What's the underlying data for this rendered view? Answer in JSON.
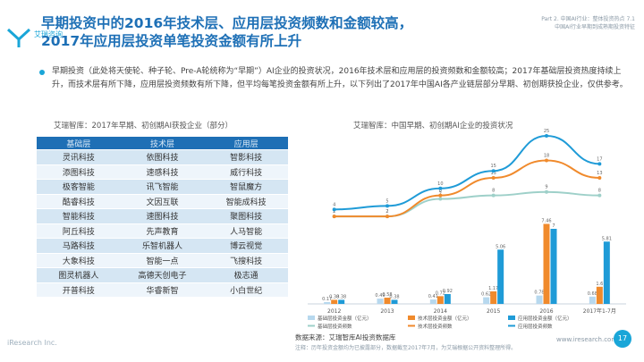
{
  "header": {
    "brand": "艾瑞咨询",
    "title_line1": "早期投资中的2016年技术层、应用层投资频数和金额较高，",
    "title_line2": "2017年应用层投资单笔投资金额有所上升",
    "part_line1": "Part 2. 中国AI行业：整体投资热点 7.1",
    "part_line2": "中国AI行业早期到成熟期投资特征"
  },
  "bullet_text": "早期投资（此处将天使轮、种子轮、Pre-A轮统称为“早期”）AI企业的投资状况，2016年技术层和应用层的投资频数和金额较高；2017年基础层投资热度持续上升，而技术层有所下降，应用层投资频数有所下降，但平均每笔投资金额有所上升，以下列出了2017年中国AI各产业链层部分早期、初创期获投企业，仅供参考。",
  "left_subtitle": "艾瑞智库：2017年早期、初创期AI获投企业（部分）",
  "table": {
    "headers": [
      "基础层",
      "技术层",
      "应用层"
    ],
    "rows": [
      [
        "灵讯科技",
        "依图科技",
        "智影科技"
      ],
      [
        "添图科技",
        "速感科技",
        "威行科技"
      ],
      [
        "极客智能",
        "讯飞智能",
        "智鼠魔方"
      ],
      [
        "酷睿科技",
        "文因互联",
        "智能成科技"
      ],
      [
        "智能科技",
        "速图科技",
        "聚图科技"
      ],
      [
        "阿丘科技",
        "先声教育",
        "人马智能"
      ],
      [
        "马路科技",
        "乐智机器人",
        "博云视觉"
      ],
      [
        "大象科技",
        "智能一点",
        "飞搜科技"
      ],
      [
        "图灵机器人",
        "高德天创电子",
        "极志通"
      ],
      [
        "开普科技",
        "华睿新智",
        "小白世纪"
      ]
    ]
  },
  "right_subtitle": "艾瑞智库：中国早期、初创期AI企业的投资状况",
  "chart_data": {
    "type": "bar+line",
    "categories": [
      "2012",
      "2013",
      "2014",
      "2015",
      "2016",
      "2017年1-7月"
    ],
    "bar_series": [
      {
        "name": "基础层投资金额（亿元）",
        "color": "#b7d8ee",
        "values": [
          0.17,
          0.49,
          0.41,
          0.62,
          0.78,
          0.68
        ]
      },
      {
        "name": "技术层投资金额（亿元）",
        "color": "#f08a2c",
        "values": [
          0.38,
          0.58,
          0.72,
          1.17,
          7.46,
          1.6
        ]
      },
      {
        "name": "应用层投资金额（亿元）",
        "color": "#1f9bd7",
        "values": [
          0.38,
          0.38,
          0.92,
          5.06,
          7.0,
          5.81
        ]
      }
    ],
    "line_series": [
      {
        "name": "基础层投资频数",
        "color": "#9ed0c9",
        "values": [
          2,
          2,
          7,
          8,
          9,
          8
        ]
      },
      {
        "name": "技术层投资频数",
        "color": "#f08a2c",
        "values": [
          2,
          2,
          8,
          13,
          18,
          13
        ]
      },
      {
        "name": "应用层投资频数",
        "color": "#1f9bd7",
        "values": [
          4,
          5,
          10,
          15,
          25,
          17
        ]
      }
    ],
    "bar_ylim": [
      0,
      10
    ],
    "line_ylim": [
      0,
      25
    ]
  },
  "source_text": "数据来源：艾瑞智库AI投资数据库",
  "footnote_text": "注释：历年投资金额均为已披露部分，数据截至2017年7月，为艾瑞根据公开资料整理所得。",
  "watermark": "iResearch Inc.",
  "url": "www.iresearch.com.cn",
  "page_number": "17"
}
